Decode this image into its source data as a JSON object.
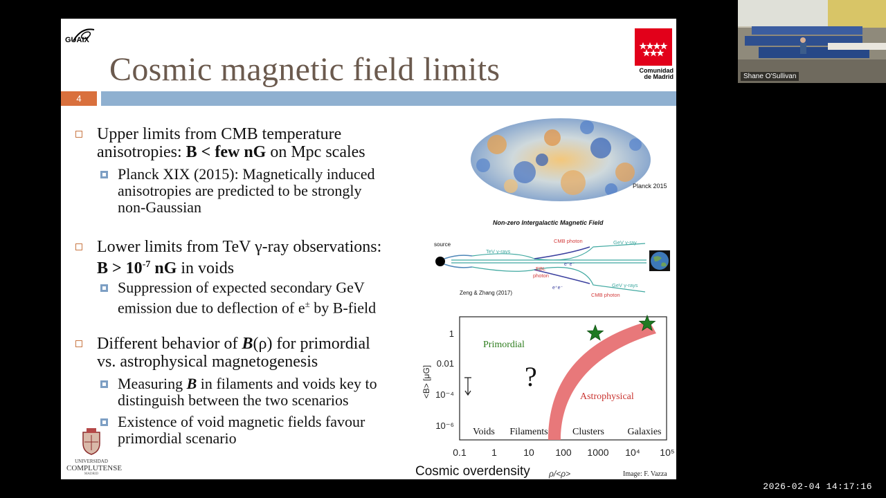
{
  "slide": {
    "title": "Cosmic magnetic field limits",
    "number": "4",
    "logo_tl_text": "GUAIX",
    "logo_tr_line1": "Comunidad",
    "logo_tr_line2": "de Madrid",
    "university_line1": "UNIVERSIDAD",
    "university_line2": "COMPLUTENSE",
    "university_line3": "MADRID",
    "bullets": {
      "b1_l1": "Upper limits from CMB temperature",
      "b1_l2_pre": "anisotropies: ",
      "b1_l2_bold": "B < few nG",
      "b1_l2_post": " on Mpc scales",
      "b1s_l1": "Planck XIX (2015): Magnetically induced",
      "b1s_l2": "anisotropies are predicted to be strongly",
      "b1s_l3": "non-Gaussian",
      "b2_l1": "Lower limits from TeV γ-ray observations:",
      "b2_l2_bold": "B > 10",
      "b2_l2_sup": "-7",
      "b2_l2_bold2": " nG",
      "b2_l2_post": " in voids",
      "b2s_l1": "Suppression of expected secondary GeV",
      "b2s_l2_pre": "emission due to deflection of e",
      "b2s_l2_sup": "±",
      "b2s_l2_post": " by B-field",
      "b3_l1_pre": "Different behavior of ",
      "b3_l1_b": "B",
      "b3_l1_rho": "(ρ)",
      "b3_l1_post": " for primordial",
      "b3_l2": "vs. astrophysical magnetogenesis",
      "b3s1_l1_pre": "Measuring ",
      "b3s1_l1_b": "B",
      "b3s1_l1_post": " in filaments and voids key to",
      "b3s1_l2": "distinguish between the two scenarios",
      "b3s2_l1": "Existence of void magnetic fields favour",
      "b3s2_l2": "primordial scenario"
    },
    "planck_label": "Planck 2015",
    "igmf": {
      "title": "Non-zero Intergalactic Magnetic Field",
      "source": "source",
      "tev": "TeV γ-rays",
      "cmb_top": "CMB photon",
      "gev_top": "GeV γ-ray",
      "ebl": "EBL",
      "photon": "photon",
      "ee_top": "e⁺e⁻",
      "ee_bot": "e⁺e⁻",
      "gev_bot": "GeV γ-rays",
      "cmb_bot": "CMB photon",
      "credit": "Zeng & Zhang (2017)"
    }
  },
  "chart_data": {
    "type": "area",
    "ylabel": "<B> [μG]",
    "yticks": [
      "1",
      "0.01",
      "10⁻⁴",
      "10⁻⁶"
    ],
    "xlabel": "Cosmic overdensity",
    "xlabel_sub": "ρ/<ρ>",
    "xticks": [
      "0.1",
      "1",
      "10",
      "100",
      "1000",
      "10⁴",
      "10⁵"
    ],
    "regions": [
      "Voids",
      "Filaments",
      "Clusters",
      "Galaxies"
    ],
    "primordial_label": "Primordial",
    "astro_label": "Astrophysical",
    "question": "?",
    "credit": "Image: F. Vazza",
    "colors": {
      "astro_band": "#e8787a",
      "primordial": "#2e7d1e",
      "astro_text": "#c9332f",
      "star": "#1f7a22"
    },
    "stars": [
      {
        "x": 1000,
        "y": 1
      },
      {
        "x": 30000,
        "y": 5
      }
    ]
  },
  "overlay": {
    "timestamp": "2026-02-04  14:17:16",
    "participant": "Shane O'Sullivan"
  }
}
